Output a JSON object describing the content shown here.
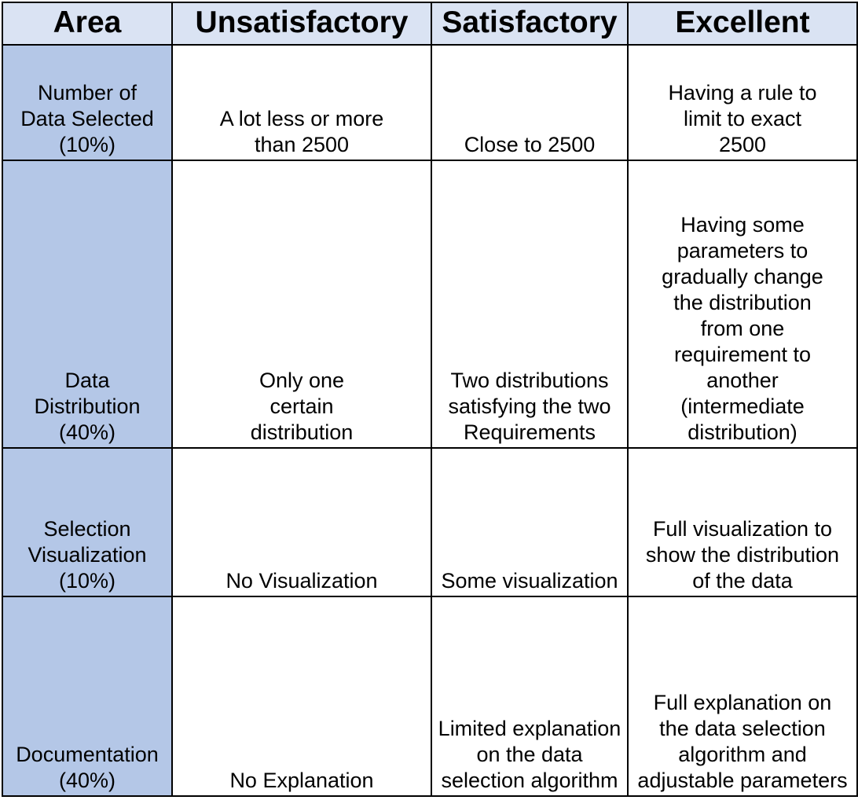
{
  "headers": {
    "area": "Area",
    "unsatisfactory": "Unsatisfactory",
    "satisfactory": "Satisfactory",
    "excellent": "Excellent"
  },
  "colors": {
    "header_bg": "#dae3f3",
    "area_bg": "#b4c7e7",
    "border": "#000000"
  },
  "rows": [
    {
      "area": "Number of Data Selected (10%)",
      "unsatisfactory": "A lot less or more than 2500",
      "satisfactory": "Close to 2500",
      "excellent": "Having a rule to limit to exact 2500"
    },
    {
      "area": "Data Distribution (40%)",
      "unsatisfactory": "Only one certain distribution",
      "satisfactory": "Two distributions satisfying the two Requirements",
      "excellent": "Having some parameters to gradually change the distribution from one requirement to another (intermediate distribution)"
    },
    {
      "area": "Selection Visualization (10%)",
      "unsatisfactory": "No Visualization",
      "satisfactory": "Some visualization",
      "excellent": "Full visualization to show the distribution of the data"
    },
    {
      "area": "Documentation (40%)",
      "unsatisfactory": "No Explanation",
      "satisfactory": "Limited explanation on the data selection algorithm",
      "excellent": "Full explanation on the data selection algorithm and adjustable parameters"
    }
  ]
}
